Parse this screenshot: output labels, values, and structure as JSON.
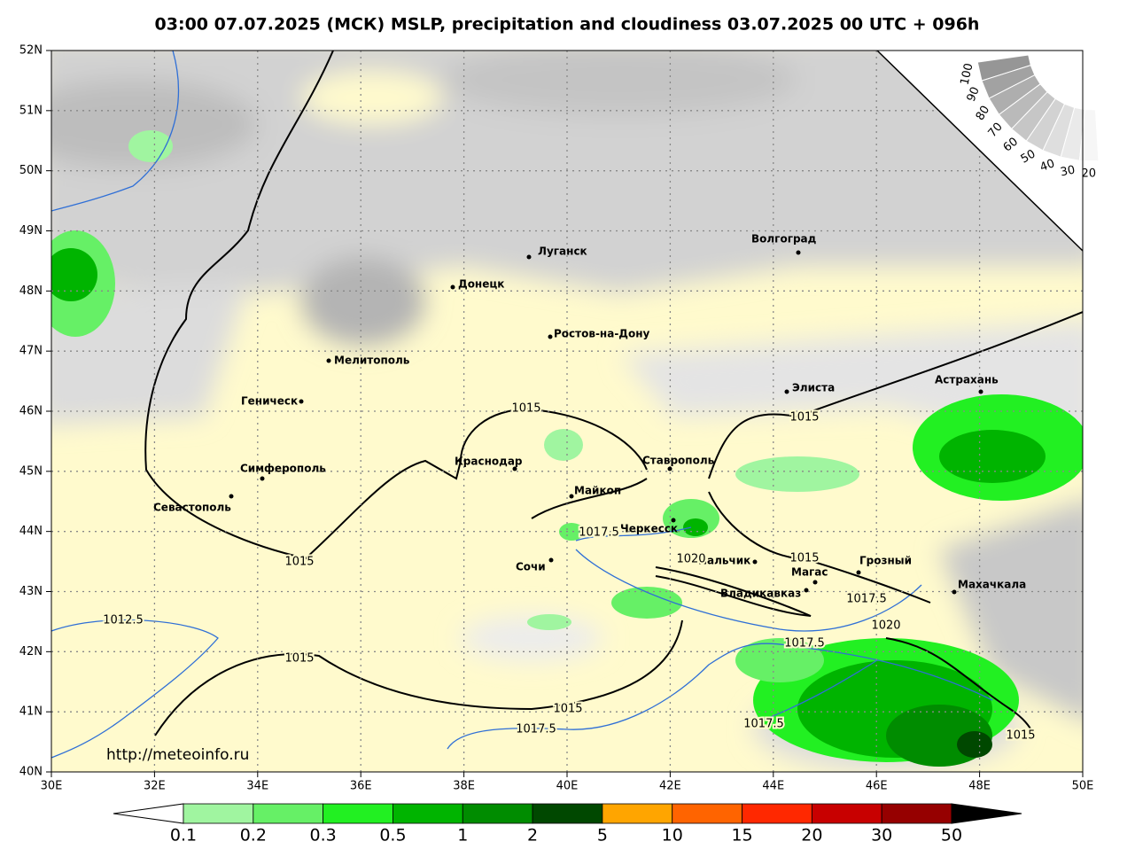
{
  "title": "03:00 07.07.2025 (МСК) MSLP, precipitation and cloudiness 03.07.2025 00 UTC + 096h",
  "lat_labels": [
    "52N",
    "51N",
    "50N",
    "49N",
    "48N",
    "47N",
    "46N",
    "45N",
    "44N",
    "43N",
    "42N",
    "41N",
    "40N"
  ],
  "lon_labels": [
    "30E",
    "32E",
    "34E",
    "36E",
    "38E",
    "40E",
    "42E",
    "44E",
    "46E",
    "48E",
    "50E"
  ],
  "cities": [
    "Луганск",
    "Донецк",
    "Волгоград",
    "Ростов-на-Дону",
    "Мелитополь",
    "Геническ",
    "Элиста",
    "Астрахань",
    "Симферополь",
    "Краснодар",
    "Ставрополь",
    "Майкоп",
    "Севастополь",
    "Черкесск",
    "Сочи",
    "Нальчик",
    "Грозный",
    "Магас",
    "Владикавказ",
    "Махачкала"
  ],
  "isobar_labels": [
    "1015",
    "1015",
    "1017.5",
    "1020",
    "1015",
    "1017.5",
    "1020",
    "1017.5",
    "1015",
    "1012.5",
    "1015",
    "1015",
    "1017.5",
    "1017.5",
    "1015"
  ],
  "cloud_scale": [
    "100",
    "90",
    "80",
    "70",
    "60",
    "50",
    "40",
    "30",
    "20"
  ],
  "precip_scale": [
    "0.1",
    "0.2",
    "0.3",
    "0.5",
    "1",
    "2",
    "5",
    "10",
    "15",
    "20",
    "30",
    "50"
  ],
  "url": "http://meteoinfo.ru"
}
